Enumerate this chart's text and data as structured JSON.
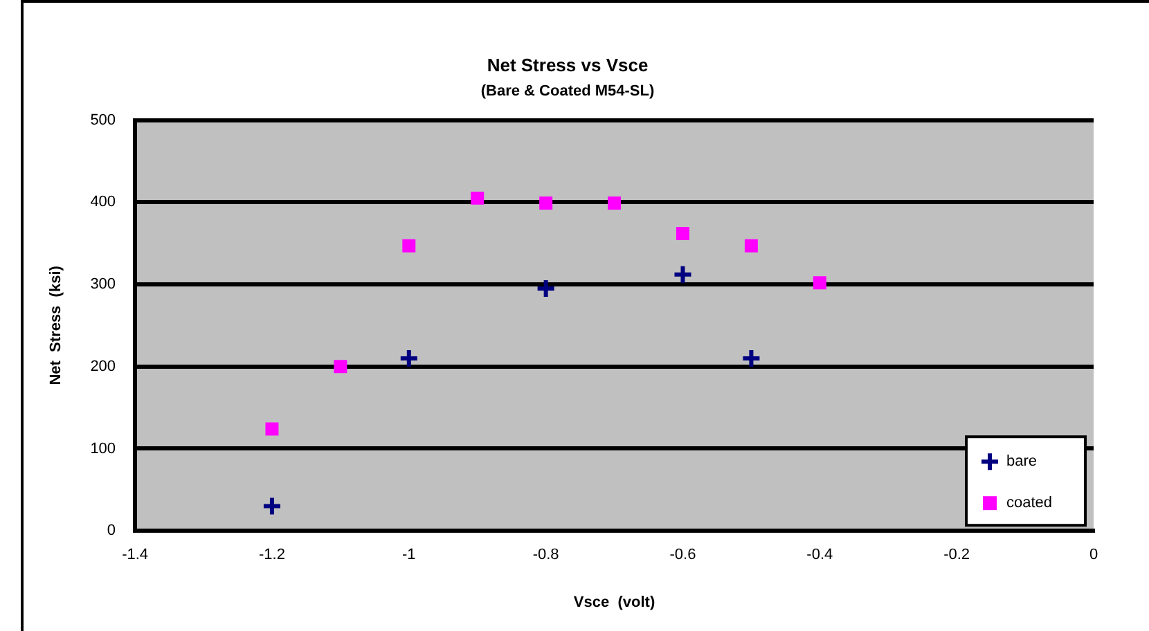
{
  "chart_data": {
    "type": "scatter",
    "title": "Net Stress vs Vsce",
    "subtitle": "(Bare & Coated M54-SL)",
    "xlabel": "Vsce  (volt)",
    "ylabel": "Net  Stress  (ksi)",
    "xlim": [
      -1.4,
      0
    ],
    "xticks": [
      -1.4,
      -1.2,
      -1,
      -0.8,
      -0.6,
      -0.4,
      -0.2,
      0
    ],
    "ylim": [
      0,
      500
    ],
    "yticks": [
      0,
      100,
      200,
      300,
      400,
      500
    ],
    "grid": "y",
    "legend": "bottom right",
    "series": [
      {
        "name": "bare",
        "color": "#000080",
        "marker": "cross",
        "x": [
          -1.2,
          -1,
          -0.8,
          -0.6,
          -0.5
        ],
        "values": [
          30,
          210,
          295,
          312,
          210
        ]
      },
      {
        "name": "coated",
        "color": "#ff00ff",
        "marker": "square",
        "x": [
          -1.2,
          -1.1,
          -1,
          -0.9,
          -0.8,
          -0.7,
          -0.6,
          -0.5,
          -0.4
        ],
        "values": [
          124,
          200,
          347,
          405,
          399,
          399,
          362,
          347,
          302
        ]
      }
    ]
  }
}
